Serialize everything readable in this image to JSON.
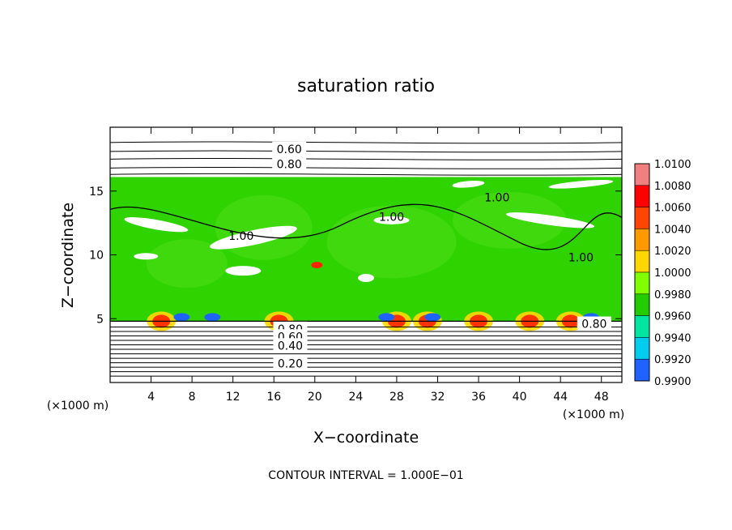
{
  "chart_data": {
    "type": "heatmap",
    "title": "saturation ratio",
    "xlabel": "X−coordinate",
    "ylabel": "Z−coordinate",
    "x_unit_label": "(×1000 m)",
    "y_unit_label": "(×1000 m)",
    "footer": "CONTOUR INTERVAL = 1.000E−01",
    "xlim": [
      0,
      50
    ],
    "ylim": [
      0,
      20
    ],
    "x_ticks": [
      {
        "value": 4,
        "label": "4"
      },
      {
        "value": 8,
        "label": "8"
      },
      {
        "value": 12,
        "label": "12"
      },
      {
        "value": 16,
        "label": "16"
      },
      {
        "value": 20,
        "label": "20"
      },
      {
        "value": 24,
        "label": "24"
      },
      {
        "value": 28,
        "label": "28"
      },
      {
        "value": 32,
        "label": "32"
      },
      {
        "value": 36,
        "label": "36"
      },
      {
        "value": 40,
        "label": "40"
      },
      {
        "value": 44,
        "label": "44"
      },
      {
        "value": 48,
        "label": "48"
      }
    ],
    "y_ticks": [
      {
        "value": 5,
        "label": "5"
      },
      {
        "value": 10,
        "label": "10"
      },
      {
        "value": 15,
        "label": "15"
      }
    ],
    "colorbar": {
      "min": 0.99,
      "max": 1.01,
      "labels": [
        "1.0100",
        "1.0080",
        "1.0060",
        "1.0040",
        "1.0020",
        "1.0000",
        "0.9980",
        "0.9960",
        "0.9940",
        "0.9920",
        "0.9900"
      ],
      "colors": [
        "#f08080",
        "#ff0000",
        "#ff4500",
        "#ff9900",
        "#ffd700",
        "#7fff00",
        "#22cc00",
        "#00e5a0",
        "#00ccee",
        "#1e63ff",
        "#0000cc",
        "#000088",
        "#5a0080"
      ]
    },
    "field": {
      "green": "#2fd400",
      "cloud_base_z": 4.8,
      "cloud_top_z": 16.1,
      "note": ""
    },
    "contour_labels": [
      {
        "text": "0.60",
        "x": 17.5,
        "z": 18.3
      },
      {
        "text": "0.80",
        "x": 17.5,
        "z": 17.1
      },
      {
        "text": "1.00",
        "x": 27.5,
        "z": 13.0
      },
      {
        "text": "1.00",
        "x": 12.8,
        "z": 11.5
      },
      {
        "text": "1.00",
        "x": 37.8,
        "z": 14.5
      },
      {
        "text": "1.00",
        "x": 46.0,
        "z": 9.8
      },
      {
        "text": "0.80",
        "x": 17.6,
        "z": 4.2
      },
      {
        "text": "0.60",
        "x": 17.6,
        "z": 3.6
      },
      {
        "text": "0.40",
        "x": 17.6,
        "z": 2.9
      },
      {
        "text": "0.20",
        "x": 17.6,
        "z": 1.5
      },
      {
        "text": "0.80",
        "x": 47.3,
        "z": 4.6
      }
    ]
  }
}
